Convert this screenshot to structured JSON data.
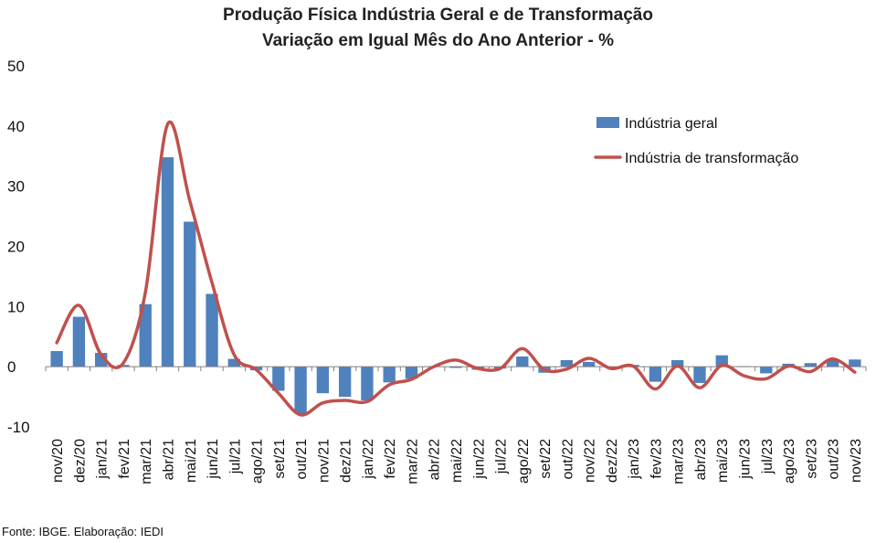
{
  "chart_data": {
    "type": "bar+line",
    "title": "Produção Física Indústria Geral e de Transformação",
    "subtitle": "Variação em Igual Mês do Ano Anterior - %",
    "source": "Fonte: IBGE. Elaboração: IEDI",
    "categories": [
      "nov/20",
      "dez/20",
      "jan/21",
      "fev/21",
      "mar/21",
      "abr/21",
      "mai/21",
      "jun/21",
      "jul/21",
      "ago/21",
      "set/21",
      "out/21",
      "nov/21",
      "dez/21",
      "jan/22",
      "fev/22",
      "mar/22",
      "abr/22",
      "mai/22",
      "jun/22",
      "jul/22",
      "ago/22",
      "set/22",
      "out/22",
      "nov/22",
      "dez/22",
      "jan/23",
      "fev/23",
      "mar/23",
      "abr/23",
      "mai/23",
      "jun/23",
      "jul/23",
      "ago/23",
      "set/23",
      "out/23",
      "nov/23"
    ],
    "ylim": [
      -10,
      50
    ],
    "yticks": [
      -10,
      0,
      10,
      20,
      30,
      40,
      50
    ],
    "series": [
      {
        "name": "Indústria geral",
        "kind": "bar",
        "color": "#4f81bd",
        "values": [
          2.6,
          8.3,
          2.3,
          0.3,
          10.4,
          34.8,
          24.1,
          12.1,
          1.3,
          -0.6,
          -4.0,
          -7.8,
          -4.4,
          -5.0,
          -5.6,
          -2.6,
          -2.0,
          0.1,
          -0.2,
          -0.5,
          -0.3,
          1.7,
          -1.0,
          1.1,
          0.8,
          -0.1,
          0.3,
          -2.5,
          1.1,
          -2.7,
          1.9,
          0.1,
          -1.1,
          0.5,
          0.6,
          1.2,
          1.2
        ]
      },
      {
        "name": "Indústria de transformação",
        "kind": "line",
        "color": "#c0504d",
        "values": [
          4.0,
          10.2,
          2.0,
          0.6,
          12.4,
          40.3,
          27.6,
          14.0,
          2.0,
          -0.5,
          -4.4,
          -8.0,
          -6.0,
          -5.6,
          -5.8,
          -3.0,
          -2.1,
          0.0,
          1.1,
          -0.3,
          -0.3,
          3.0,
          -0.5,
          -0.4,
          1.4,
          -0.3,
          0.1,
          -3.7,
          0.1,
          -3.5,
          0.2,
          -1.5,
          -2.0,
          0.1,
          -0.8,
          1.3,
          -0.9
        ]
      }
    ],
    "legend": {
      "placement": "top-right"
    },
    "grid": false
  }
}
